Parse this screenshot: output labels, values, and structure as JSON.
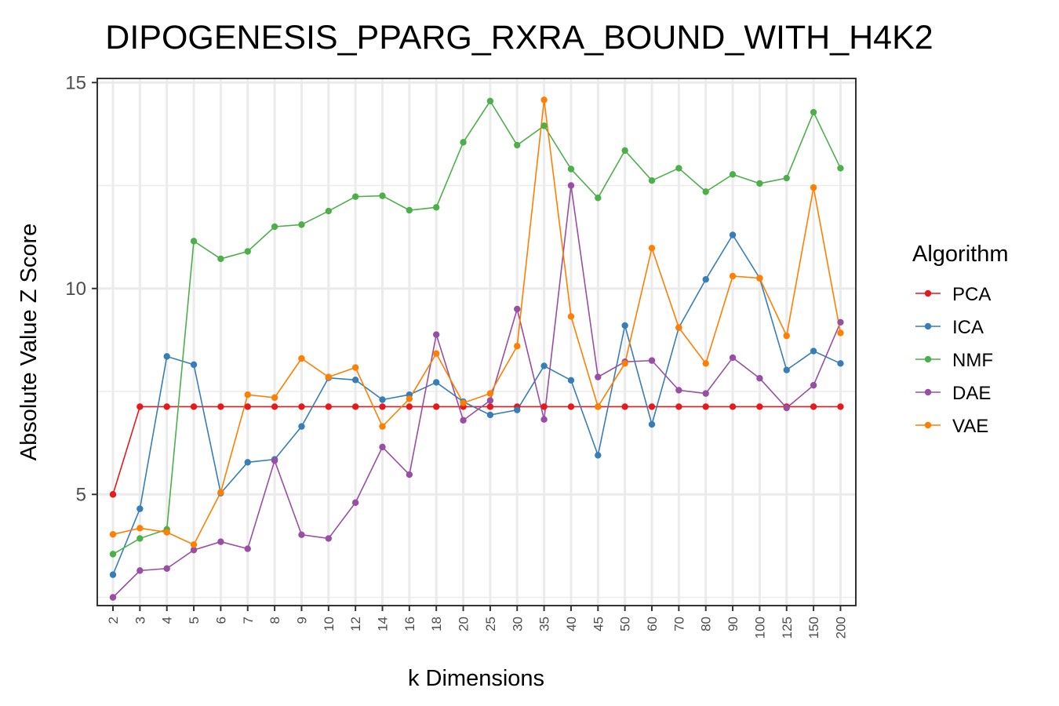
{
  "chart_data": {
    "type": "line",
    "title": "DIPOGENESIS_PPARG_RXRA_BOUND_WITH_H4K2",
    "xlabel": "k Dimensions",
    "ylabel": "Absolute Value Z Score",
    "categories": [
      "2",
      "3",
      "4",
      "5",
      "6",
      "7",
      "8",
      "9",
      "10",
      "12",
      "14",
      "16",
      "18",
      "20",
      "25",
      "30",
      "35",
      "40",
      "45",
      "50",
      "60",
      "70",
      "80",
      "90",
      "100",
      "125",
      "150",
      "200"
    ],
    "ylim": [
      2.3,
      15.1
    ],
    "yticks": [
      5,
      10,
      15
    ],
    "grid": true,
    "legend": {
      "title": "Algorithm",
      "placement": "right"
    },
    "series": [
      {
        "name": "PCA",
        "color": "#e41a1c",
        "values": [
          5.0,
          7.13,
          7.13,
          7.13,
          7.13,
          7.13,
          7.13,
          7.13,
          7.13,
          7.13,
          7.13,
          7.13,
          7.13,
          7.13,
          7.13,
          7.13,
          7.13,
          7.13,
          7.13,
          7.13,
          7.13,
          7.13,
          7.13,
          7.13,
          7.13,
          7.13,
          7.13,
          7.13
        ]
      },
      {
        "name": "ICA",
        "color": "#377eb8",
        "values": [
          3.05,
          4.65,
          8.35,
          8.15,
          5.03,
          5.78,
          5.85,
          6.65,
          7.83,
          7.78,
          7.3,
          7.42,
          7.72,
          7.25,
          6.93,
          7.05,
          8.12,
          7.77,
          5.95,
          9.1,
          6.7,
          9.05,
          10.22,
          11.3,
          10.25,
          8.02,
          8.48,
          8.18
        ]
      },
      {
        "name": "NMF",
        "color": "#4daf4a",
        "values": [
          3.55,
          3.93,
          4.15,
          11.15,
          10.72,
          10.9,
          11.5,
          11.55,
          11.88,
          12.23,
          12.25,
          11.9,
          11.97,
          13.55,
          14.55,
          13.48,
          13.95,
          12.9,
          12.2,
          13.35,
          12.62,
          12.92,
          12.35,
          12.77,
          12.55,
          12.68,
          14.28,
          12.92
        ]
      },
      {
        "name": "DAE",
        "color": "#984ea3",
        "values": [
          2.5,
          3.15,
          3.2,
          3.65,
          3.85,
          3.68,
          5.82,
          4.02,
          3.93,
          4.8,
          6.15,
          5.48,
          8.88,
          6.8,
          7.28,
          9.5,
          6.82,
          12.5,
          7.85,
          8.22,
          8.25,
          7.53,
          7.45,
          8.32,
          7.82,
          7.1,
          7.65,
          9.18
        ]
      },
      {
        "name": "VAE",
        "color": "#ff7f00",
        "values": [
          4.03,
          4.18,
          4.08,
          3.78,
          5.05,
          7.42,
          7.35,
          8.3,
          7.85,
          8.08,
          6.65,
          7.32,
          8.42,
          7.22,
          7.45,
          8.6,
          14.58,
          9.32,
          7.13,
          8.18,
          10.98,
          9.05,
          8.18,
          10.3,
          10.25,
          8.85,
          12.45,
          8.92
        ]
      }
    ]
  }
}
